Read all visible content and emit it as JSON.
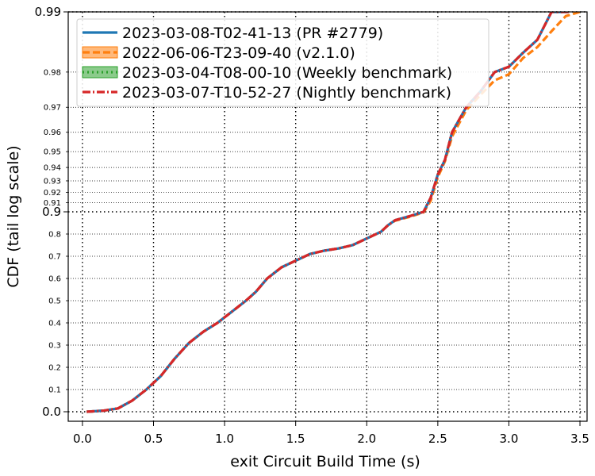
{
  "chart_data": {
    "type": "line",
    "xlabel": "exit Circuit Build Time (s)",
    "ylabel": "CDF (tail log scale)",
    "xlim": [
      -0.1,
      3.55
    ],
    "yscale": "tail-log",
    "xticks": [
      {
        "value": 0.0,
        "label": "0.0"
      },
      {
        "value": 0.5,
        "label": "0.5"
      },
      {
        "value": 1.0,
        "label": "1.0"
      },
      {
        "value": 1.5,
        "label": "1.5"
      },
      {
        "value": 2.0,
        "label": "2.0"
      },
      {
        "value": 2.5,
        "label": "2.5"
      },
      {
        "value": 3.0,
        "label": "3.0"
      },
      {
        "value": 3.5,
        "label": "3.5"
      }
    ],
    "yticks_major": [
      {
        "value": 0.0,
        "label": "0.0"
      },
      {
        "value": 0.9,
        "label": "0.9"
      },
      {
        "value": 0.99,
        "label": "0.99"
      }
    ],
    "yticks_minor": [
      {
        "value": 0.1,
        "label": "0.1"
      },
      {
        "value": 0.2,
        "label": "0.2"
      },
      {
        "value": 0.3,
        "label": "0.3"
      },
      {
        "value": 0.4,
        "label": "0.4"
      },
      {
        "value": 0.5,
        "label": "0.5"
      },
      {
        "value": 0.6,
        "label": "0.6"
      },
      {
        "value": 0.7,
        "label": "0.7"
      },
      {
        "value": 0.8,
        "label": "0.8"
      },
      {
        "value": 0.91,
        "label": "0.91"
      },
      {
        "value": 0.92,
        "label": "0.92"
      },
      {
        "value": 0.93,
        "label": "0.93"
      },
      {
        "value": 0.94,
        "label": "0.94"
      },
      {
        "value": 0.95,
        "label": "0.95"
      },
      {
        "value": 0.96,
        "label": "0.96"
      },
      {
        "value": 0.97,
        "label": "0.97"
      },
      {
        "value": 0.98,
        "label": "0.98"
      }
    ],
    "grid": true,
    "legend_position": "top-left",
    "series": [
      {
        "name": "2023-03-08-T02-41-13 (PR #2779)",
        "color": "#1f77b4",
        "dash": "solid",
        "points": [
          [
            0.03,
            0.0
          ],
          [
            0.15,
            0.005
          ],
          [
            0.25,
            0.015
          ],
          [
            0.35,
            0.05
          ],
          [
            0.45,
            0.1
          ],
          [
            0.55,
            0.16
          ],
          [
            0.65,
            0.24
          ],
          [
            0.75,
            0.31
          ],
          [
            0.85,
            0.36
          ],
          [
            0.95,
            0.4
          ],
          [
            1.05,
            0.45
          ],
          [
            1.15,
            0.5
          ],
          [
            1.22,
            0.54
          ],
          [
            1.3,
            0.6
          ],
          [
            1.4,
            0.65
          ],
          [
            1.5,
            0.68
          ],
          [
            1.6,
            0.71
          ],
          [
            1.7,
            0.725
          ],
          [
            1.8,
            0.735
          ],
          [
            1.9,
            0.75
          ],
          [
            2.0,
            0.78
          ],
          [
            2.1,
            0.81
          ],
          [
            2.15,
            0.84
          ],
          [
            2.2,
            0.862
          ],
          [
            2.3,
            0.88
          ],
          [
            2.4,
            0.9
          ],
          [
            2.45,
            0.915
          ],
          [
            2.5,
            0.935
          ],
          [
            2.55,
            0.945
          ],
          [
            2.6,
            0.96
          ],
          [
            2.7,
            0.97
          ],
          [
            2.8,
            0.975
          ],
          [
            2.9,
            0.98
          ],
          [
            3.0,
            0.9812
          ],
          [
            3.1,
            0.984
          ],
          [
            3.2,
            0.9862
          ],
          [
            3.3,
            0.99
          ],
          [
            3.42,
            0.99
          ]
        ]
      },
      {
        "name": "2022-06-06-T23-09-40 (v2.1.0)",
        "color": "#ff7f0e",
        "dash": "dashed",
        "points": [
          [
            0.03,
            0.0
          ],
          [
            0.15,
            0.005
          ],
          [
            0.25,
            0.015
          ],
          [
            0.35,
            0.05
          ],
          [
            0.45,
            0.1
          ],
          [
            0.55,
            0.16
          ],
          [
            0.65,
            0.24
          ],
          [
            0.75,
            0.31
          ],
          [
            0.85,
            0.36
          ],
          [
            0.95,
            0.4
          ],
          [
            1.05,
            0.45
          ],
          [
            1.15,
            0.5
          ],
          [
            1.22,
            0.54
          ],
          [
            1.3,
            0.6
          ],
          [
            1.4,
            0.65
          ],
          [
            1.5,
            0.68
          ],
          [
            1.6,
            0.71
          ],
          [
            1.7,
            0.725
          ],
          [
            1.8,
            0.735
          ],
          [
            1.9,
            0.75
          ],
          [
            2.0,
            0.78
          ],
          [
            2.1,
            0.81
          ],
          [
            2.15,
            0.84
          ],
          [
            2.2,
            0.86
          ],
          [
            2.3,
            0.877
          ],
          [
            2.4,
            0.897
          ],
          [
            2.45,
            0.912
          ],
          [
            2.5,
            0.933
          ],
          [
            2.55,
            0.944
          ],
          [
            2.6,
            0.958
          ],
          [
            2.7,
            0.969
          ],
          [
            2.8,
            0.974
          ],
          [
            2.9,
            0.978
          ],
          [
            3.0,
            0.9795
          ],
          [
            3.1,
            0.983
          ],
          [
            3.2,
            0.985
          ],
          [
            3.3,
            0.9875
          ],
          [
            3.4,
            0.9895
          ],
          [
            3.5,
            0.99
          ]
        ]
      },
      {
        "name": "2023-03-04-T08-00-10 (Weekly benchmark)",
        "color": "#2ca02c",
        "dash": "dotted",
        "points": [
          [
            0.03,
            0.0
          ],
          [
            0.15,
            0.005
          ],
          [
            0.25,
            0.015
          ],
          [
            0.35,
            0.05
          ],
          [
            0.45,
            0.1
          ],
          [
            0.55,
            0.16
          ],
          [
            0.65,
            0.24
          ],
          [
            0.75,
            0.31
          ],
          [
            0.85,
            0.36
          ],
          [
            0.95,
            0.4
          ],
          [
            1.05,
            0.45
          ],
          [
            1.15,
            0.5
          ],
          [
            1.22,
            0.54
          ],
          [
            1.3,
            0.6
          ],
          [
            1.4,
            0.65
          ],
          [
            1.5,
            0.68
          ],
          [
            1.6,
            0.71
          ],
          [
            1.7,
            0.725
          ],
          [
            1.8,
            0.735
          ],
          [
            1.9,
            0.75
          ],
          [
            2.0,
            0.78
          ],
          [
            2.1,
            0.81
          ],
          [
            2.15,
            0.84
          ],
          [
            2.2,
            0.862
          ],
          [
            2.3,
            0.88
          ],
          [
            2.4,
            0.9
          ],
          [
            2.45,
            0.915
          ],
          [
            2.5,
            0.935
          ],
          [
            2.55,
            0.945
          ],
          [
            2.6,
            0.96
          ],
          [
            2.7,
            0.97
          ],
          [
            2.8,
            0.975
          ],
          [
            2.9,
            0.98
          ],
          [
            3.0,
            0.9812
          ],
          [
            3.1,
            0.984
          ],
          [
            3.2,
            0.9862
          ],
          [
            3.3,
            0.99
          ],
          [
            3.42,
            0.99
          ]
        ]
      },
      {
        "name": "2023-03-07-T10-52-27 (Nightly benchmark)",
        "color": "#d62728",
        "dash": "dashdot",
        "points": [
          [
            0.03,
            0.0
          ],
          [
            0.15,
            0.005
          ],
          [
            0.25,
            0.015
          ],
          [
            0.35,
            0.05
          ],
          [
            0.45,
            0.1
          ],
          [
            0.55,
            0.16
          ],
          [
            0.65,
            0.24
          ],
          [
            0.75,
            0.31
          ],
          [
            0.85,
            0.36
          ],
          [
            0.95,
            0.4
          ],
          [
            1.05,
            0.45
          ],
          [
            1.15,
            0.5
          ],
          [
            1.22,
            0.54
          ],
          [
            1.3,
            0.6
          ],
          [
            1.4,
            0.65
          ],
          [
            1.5,
            0.68
          ],
          [
            1.6,
            0.71
          ],
          [
            1.7,
            0.725
          ],
          [
            1.8,
            0.735
          ],
          [
            1.9,
            0.75
          ],
          [
            2.0,
            0.78
          ],
          [
            2.1,
            0.81
          ],
          [
            2.15,
            0.84
          ],
          [
            2.2,
            0.862
          ],
          [
            2.3,
            0.88
          ],
          [
            2.4,
            0.9
          ],
          [
            2.45,
            0.915
          ],
          [
            2.5,
            0.935
          ],
          [
            2.55,
            0.945
          ],
          [
            2.6,
            0.96
          ],
          [
            2.7,
            0.97
          ],
          [
            2.8,
            0.975
          ],
          [
            2.9,
            0.98
          ],
          [
            3.0,
            0.9812
          ],
          [
            3.1,
            0.984
          ],
          [
            3.2,
            0.9862
          ],
          [
            3.3,
            0.99
          ],
          [
            3.42,
            0.99
          ]
        ]
      }
    ]
  }
}
